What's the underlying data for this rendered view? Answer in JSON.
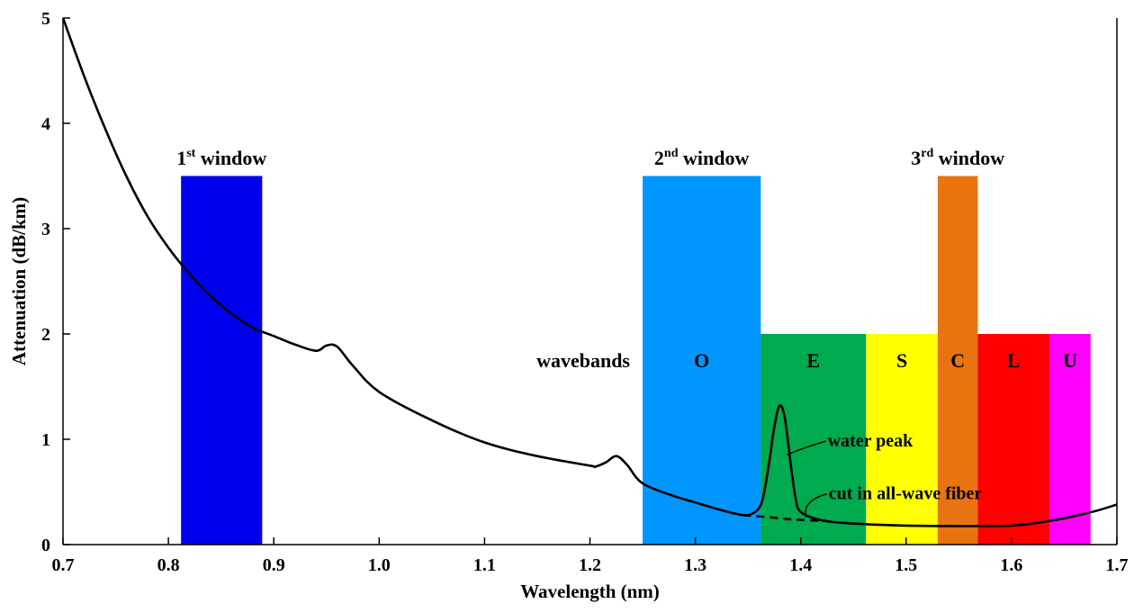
{
  "chart_data": {
    "type": "line",
    "xlabel": "Wavelength (nm)",
    "ylabel": "Attenuation (dB/km)",
    "xlim": [
      0.7,
      1.7
    ],
    "ylim": [
      0,
      5
    ],
    "x_ticks": [
      "0.7",
      "0.8",
      "0.9",
      "1.0",
      "1.1",
      "1.2",
      "1.3",
      "1.4",
      "1.5",
      "1.6",
      "1.7"
    ],
    "y_ticks": [
      "0",
      "1",
      "2",
      "3",
      "4",
      "5"
    ],
    "grid": false,
    "windows": [
      {
        "label_main": "1",
        "label_sup": "st",
        "label_rest": " window",
        "x0": 0.812,
        "x1": 0.889,
        "top": 3.5,
        "color": "#0000ee"
      },
      {
        "label_main": "2",
        "label_sup": "nd",
        "label_rest": " window",
        "x0": 1.25,
        "x1": 1.362,
        "top": 3.5,
        "color": "#0096ff"
      },
      {
        "label_main": "3",
        "label_sup": "rd",
        "label_rest": " window",
        "x0": 1.53,
        "x1": 1.568,
        "top": 3.5,
        "color": "#e8730f"
      }
    ],
    "wavebands_label": "wavebands",
    "bands": [
      {
        "label": "O",
        "x0": 1.25,
        "x1": 1.362,
        "top": 3.5,
        "color": "#0096ff"
      },
      {
        "label": "E",
        "x0": 1.362,
        "x1": 1.462,
        "top": 2.0,
        "color": "#00aa4e"
      },
      {
        "label": "S",
        "x0": 1.462,
        "x1": 1.53,
        "top": 2.0,
        "color": "#ffff00"
      },
      {
        "label": "C",
        "x0": 1.53,
        "x1": 1.568,
        "top": 2.0,
        "color": "#e8730f"
      },
      {
        "label": "L",
        "x0": 1.568,
        "x1": 1.636,
        "top": 2.0,
        "color": "#ff0000"
      },
      {
        "label": "U",
        "x0": 1.636,
        "x1": 1.675,
        "top": 2.0,
        "color": "#ff00ff"
      }
    ],
    "series": [
      {
        "style": "solid",
        "x": [
          0.7,
          0.72,
          0.74,
          0.76,
          0.78,
          0.8,
          0.82,
          0.84,
          0.86,
          0.88,
          0.9,
          0.92,
          0.94,
          0.95,
          0.96,
          0.975,
          1.0,
          1.05,
          1.1,
          1.15,
          1.2,
          1.205,
          1.215,
          1.225,
          1.235,
          1.25,
          1.28,
          1.3,
          1.32,
          1.34,
          1.35,
          1.36,
          1.365,
          1.37,
          1.375,
          1.38,
          1.385,
          1.39,
          1.395,
          1.4,
          1.42,
          1.45,
          1.5,
          1.55,
          1.58,
          1.6,
          1.62,
          1.65,
          1.68,
          1.7
        ],
        "y": [
          5.0,
          4.45,
          3.95,
          3.5,
          3.12,
          2.82,
          2.57,
          2.36,
          2.19,
          2.06,
          1.98,
          1.9,
          1.84,
          1.89,
          1.88,
          1.7,
          1.45,
          1.18,
          0.97,
          0.84,
          0.75,
          0.74,
          0.78,
          0.84,
          0.76,
          0.58,
          0.46,
          0.4,
          0.34,
          0.29,
          0.28,
          0.34,
          0.48,
          0.78,
          1.12,
          1.32,
          1.2,
          0.8,
          0.45,
          0.31,
          0.23,
          0.2,
          0.18,
          0.175,
          0.175,
          0.18,
          0.2,
          0.25,
          0.32,
          0.38
        ]
      },
      {
        "style": "dashed",
        "x": [
          1.345,
          1.37,
          1.39,
          1.41,
          1.425
        ],
        "y": [
          0.28,
          0.26,
          0.24,
          0.23,
          0.225
        ]
      }
    ],
    "annotations": [
      {
        "text": "water peak",
        "point": [
          1.387,
          0.85
        ],
        "label": [
          1.417,
          0.93
        ]
      },
      {
        "text": "cut in all-wave fiber",
        "point": [
          1.405,
          0.26
        ],
        "label": [
          1.418,
          0.43
        ]
      }
    ]
  }
}
